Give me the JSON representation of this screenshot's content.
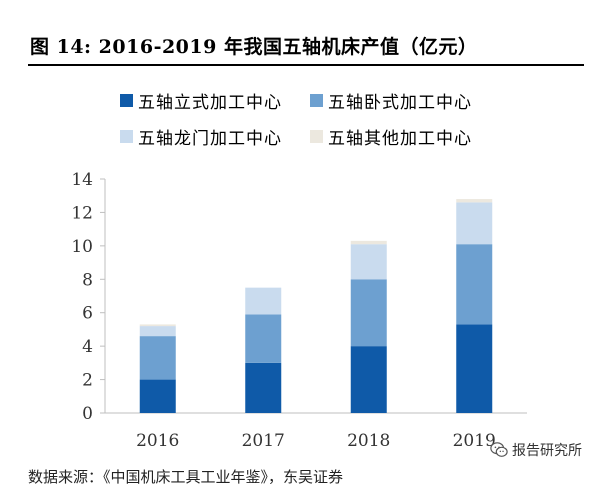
{
  "header": {
    "title": "图  14:    2016-2019 年我国五轴机床产值（亿元）"
  },
  "footer": {
    "source": "数据来源：《中国机床工具工业年鉴》，东吴证券"
  },
  "watermark": {
    "text": "报告研究所",
    "icon": "wechat-icon"
  },
  "colors": {
    "vertical": "#0f5aa8",
    "horizontal": "#6da0d0",
    "gantry": "#c9dbee",
    "other": "#ece8df"
  },
  "chart_data": {
    "type": "bar",
    "stacked": true,
    "categories": [
      "2016",
      "2017",
      "2018",
      "2019"
    ],
    "series": [
      {
        "name": "五轴立式加工中心",
        "values": [
          2.0,
          3.0,
          4.0,
          5.3
        ]
      },
      {
        "name": "五轴卧式加工中心",
        "values": [
          2.6,
          2.9,
          4.0,
          4.8
        ]
      },
      {
        "name": "五轴龙门加工中心",
        "values": [
          0.6,
          1.6,
          2.1,
          2.5
        ]
      },
      {
        "name": "五轴其他加工中心",
        "values": [
          0.1,
          0.0,
          0.2,
          0.2
        ]
      }
    ],
    "ylim": [
      0,
      14
    ],
    "yticks": [
      0,
      2,
      4,
      6,
      8,
      10,
      12,
      14
    ],
    "legend_position": "top",
    "grid": false
  }
}
